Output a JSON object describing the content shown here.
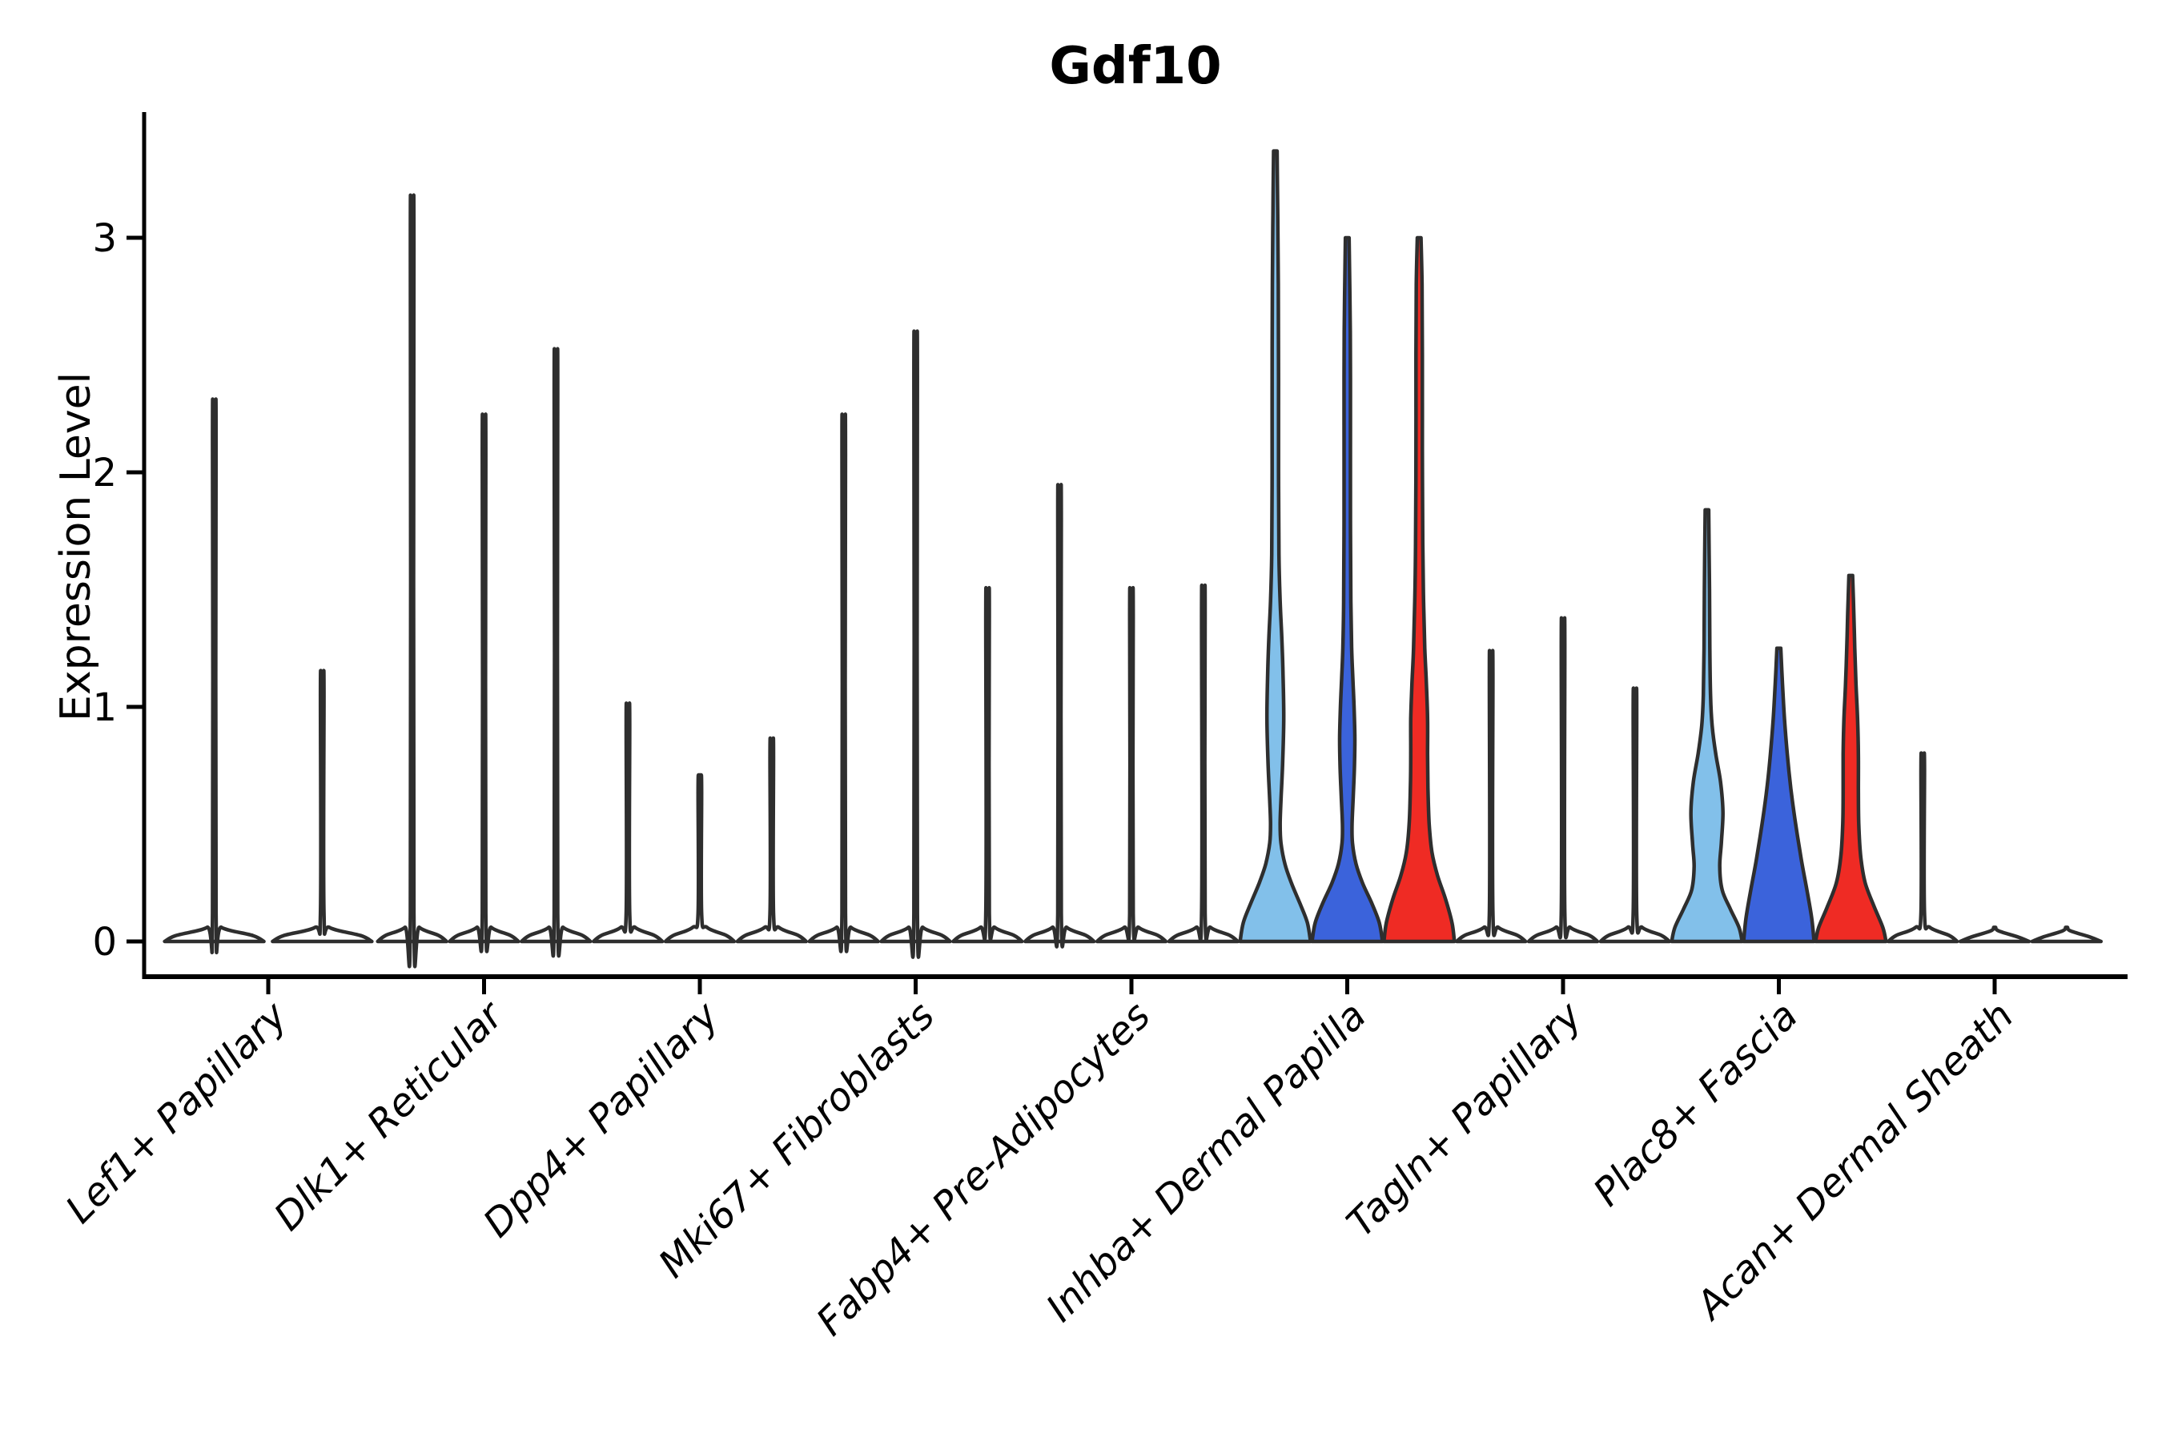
{
  "title": "Gdf10",
  "y_axis": {
    "label": "Expression Level",
    "ticks": [
      "0",
      "1",
      "2",
      "3"
    ],
    "tick_values": [
      0,
      1,
      2,
      3
    ],
    "range": [
      -0.15,
      3.54
    ]
  },
  "colors": {
    "highlight_light_blue": "#82C0EA",
    "highlight_dark_blue": "#3B63DB",
    "highlight_red": "#EF2B24",
    "plain_violin_fill": "#FFFFFF",
    "outline": "#2E2E2E",
    "axis": "#000000",
    "background": "#FFFFFF"
  },
  "chart_data": {
    "type": "violin",
    "title": "Gdf10",
    "xlabel": "",
    "ylabel": "Expression Level",
    "ylim": [
      -0.15,
      3.54
    ],
    "yticks": [
      0,
      1,
      2,
      3
    ],
    "grid": false,
    "legend": "none",
    "categories": [
      "Lef1+ Papillary",
      "Dlk1+ Reticular",
      "Dpp4+ Papillary",
      "Mki67+ Fibroblasts",
      "Fabp4+ Pre-Adipocytes",
      "Inhba+ Dermal Papilla",
      "Tagln+ Papillary",
      "Plac8+ Fascia",
      "Acan+ Dermal Sheath"
    ],
    "groups": [
      {
        "category": "Lef1+ Papillary",
        "violins": [
          {
            "kind": "spike",
            "max": 2.21,
            "fill": "#FFFFFF",
            "base_hw": 62
          },
          {
            "kind": "spike",
            "max": 1.13,
            "fill": "#FFFFFF",
            "base_hw": 62
          }
        ]
      },
      {
        "category": "Dlk1+ Reticular",
        "violins": [
          {
            "kind": "spike",
            "max": 3.02,
            "fill": "#FFFFFF",
            "base_hw": 43
          },
          {
            "kind": "spike",
            "max": 2.15,
            "fill": "#FFFFFF",
            "base_hw": 43
          },
          {
            "kind": "spike",
            "max": 2.41,
            "fill": "#FFFFFF",
            "base_hw": 43
          }
        ]
      },
      {
        "category": "Dpp4+ Papillary",
        "violins": [
          {
            "kind": "spike",
            "max": 1.0,
            "fill": "#FFFFFF",
            "base_hw": 43
          },
          {
            "kind": "spike",
            "max": 0.71,
            "fill": "#FFFFFF",
            "base_hw": 43
          },
          {
            "kind": "spike",
            "max": 0.86,
            "fill": "#FFFFFF",
            "base_hw": 43
          }
        ]
      },
      {
        "category": "Mki67+ Fibroblasts",
        "violins": [
          {
            "kind": "spike",
            "max": 2.15,
            "fill": "#FFFFFF",
            "base_hw": 43
          },
          {
            "kind": "spike",
            "max": 2.48,
            "fill": "#FFFFFF",
            "base_hw": 43
          },
          {
            "kind": "spike",
            "max": 1.46,
            "fill": "#FFFFFF",
            "base_hw": 43
          }
        ]
      },
      {
        "category": "Fabp4+ Pre-Adipocytes",
        "violins": [
          {
            "kind": "spike",
            "max": 1.87,
            "fill": "#FFFFFF",
            "base_hw": 43
          },
          {
            "kind": "spike",
            "max": 1.46,
            "fill": "#FFFFFF",
            "base_hw": 43
          },
          {
            "kind": "spike",
            "max": 1.47,
            "fill": "#FFFFFF",
            "base_hw": 43
          }
        ]
      },
      {
        "category": "Inhba+ Dermal Papilla",
        "violins": [
          {
            "kind": "violin",
            "max": 3.37,
            "fill": "#82C0EA",
            "base_hw": 44,
            "profile": [
              [
                0,
                44
              ],
              [
                0.08,
                40
              ],
              [
                0.16,
                31
              ],
              [
                0.25,
                20
              ],
              [
                0.33,
                12
              ],
              [
                0.42,
                7
              ],
              [
                0.5,
                6
              ],
              [
                0.6,
                7
              ],
              [
                0.75,
                9
              ],
              [
                0.95,
                10.5
              ],
              [
                1.15,
                9.5
              ],
              [
                1.3,
                8
              ],
              [
                1.45,
                6
              ],
              [
                1.65,
                4.5
              ],
              [
                2.0,
                4
              ],
              [
                2.4,
                4
              ],
              [
                2.8,
                3.7
              ],
              [
                3.1,
                3
              ],
              [
                3.37,
                2.2
              ]
            ]
          },
          {
            "kind": "violin",
            "max": 3.0,
            "fill": "#3B63DB",
            "base_hw": 44,
            "profile": [
              [
                0,
                44
              ],
              [
                0.08,
                40
              ],
              [
                0.16,
                31
              ],
              [
                0.25,
                19
              ],
              [
                0.33,
                11
              ],
              [
                0.42,
                6.5
              ],
              [
                0.5,
                6
              ],
              [
                0.62,
                7.5
              ],
              [
                0.75,
                9
              ],
              [
                0.87,
                9.5
              ],
              [
                1.0,
                8.5
              ],
              [
                1.12,
                7
              ],
              [
                1.25,
                5.5
              ],
              [
                1.45,
                4.5
              ],
              [
                1.8,
                4
              ],
              [
                2.2,
                4
              ],
              [
                2.6,
                3.8
              ],
              [
                3.0,
                2.3
              ]
            ]
          },
          {
            "kind": "violin",
            "max": 3.0,
            "fill": "#EF2B24",
            "base_hw": 44,
            "profile": [
              [
                0,
                44
              ],
              [
                0.08,
                41
              ],
              [
                0.18,
                33
              ],
              [
                0.28,
                23
              ],
              [
                0.38,
                16
              ],
              [
                0.5,
                12.5
              ],
              [
                0.65,
                11
              ],
              [
                0.8,
                10.5
              ],
              [
                0.95,
                10.5
              ],
              [
                1.1,
                9
              ],
              [
                1.25,
                7
              ],
              [
                1.45,
                5.5
              ],
              [
                1.7,
                4.5
              ],
              [
                2.1,
                4
              ],
              [
                2.5,
                4
              ],
              [
                2.8,
                3.6
              ],
              [
                3.0,
                2.3
              ]
            ]
          }
        ]
      },
      {
        "category": "Tagln+ Papillary",
        "violins": [
          {
            "kind": "spike",
            "max": 1.21,
            "fill": "#FFFFFF",
            "base_hw": 43
          },
          {
            "kind": "spike",
            "max": 1.34,
            "fill": "#FFFFFF",
            "base_hw": 43
          },
          {
            "kind": "spike",
            "max": 1.06,
            "fill": "#FFFFFF",
            "base_hw": 43
          }
        ]
      },
      {
        "category": "Plac8+ Fascia",
        "violins": [
          {
            "kind": "violin",
            "max": 1.84,
            "fill": "#82C0EA",
            "base_hw": 44,
            "profile": [
              [
                0,
                44
              ],
              [
                0.06,
                40
              ],
              [
                0.14,
                29
              ],
              [
                0.22,
                19
              ],
              [
                0.32,
                16
              ],
              [
                0.42,
                18
              ],
              [
                0.55,
                20
              ],
              [
                0.68,
                17
              ],
              [
                0.8,
                11
              ],
              [
                0.92,
                6.5
              ],
              [
                1.05,
                4.5
              ],
              [
                1.25,
                3.6
              ],
              [
                1.5,
                3.2
              ],
              [
                1.84,
                2.2
              ]
            ]
          },
          {
            "kind": "violin",
            "max": 1.25,
            "fill": "#3B63DB",
            "base_hw": 44,
            "profile": [
              [
                0,
                44
              ],
              [
                0.1,
                41
              ],
              [
                0.22,
                35
              ],
              [
                0.35,
                28
              ],
              [
                0.5,
                21
              ],
              [
                0.65,
                15
              ],
              [
                0.8,
                10.5
              ],
              [
                0.95,
                7
              ],
              [
                1.1,
                4.5
              ],
              [
                1.25,
                2.4
              ]
            ]
          },
          {
            "kind": "violin",
            "max": 1.56,
            "fill": "#EF2B24",
            "base_hw": 44,
            "profile": [
              [
                0,
                44
              ],
              [
                0.06,
                40
              ],
              [
                0.15,
                29
              ],
              [
                0.25,
                18
              ],
              [
                0.36,
                12.5
              ],
              [
                0.5,
                10
              ],
              [
                0.65,
                9.5
              ],
              [
                0.8,
                9.5
              ],
              [
                0.95,
                8.5
              ],
              [
                1.1,
                6.5
              ],
              [
                1.25,
                5
              ],
              [
                1.4,
                3.8
              ],
              [
                1.56,
                2.3
              ]
            ]
          }
        ]
      },
      {
        "category": "Acan+ Dermal Sheath",
        "violins": [
          {
            "kind": "spike",
            "max": 0.8,
            "fill": "#FFFFFF",
            "base_hw": 43
          },
          {
            "kind": "flat",
            "max": 0.0,
            "fill": "#FFFFFF",
            "base_hw": 43
          },
          {
            "kind": "flat",
            "max": 0.0,
            "fill": "#FFFFFF",
            "base_hw": 43
          }
        ]
      }
    ]
  }
}
